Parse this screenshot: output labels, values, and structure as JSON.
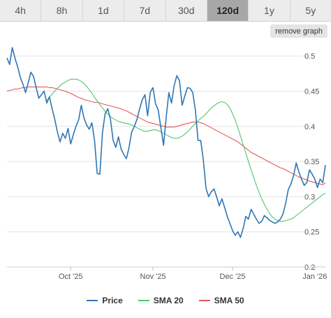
{
  "tabs": [
    {
      "label": "4h",
      "active": false
    },
    {
      "label": "8h",
      "active": false
    },
    {
      "label": "1d",
      "active": false
    },
    {
      "label": "7d",
      "active": false
    },
    {
      "label": "30d",
      "active": false
    },
    {
      "label": "120d",
      "active": true
    },
    {
      "label": "1y",
      "active": false
    },
    {
      "label": "5y",
      "active": false
    }
  ],
  "remove_graph_label": "remove graph",
  "chart_data": {
    "type": "line",
    "title": "",
    "xlabel": "",
    "ylabel": "",
    "ylim": [
      0.2,
      0.52
    ],
    "y_ticks": [
      0.2,
      0.25,
      0.3,
      0.35,
      0.4,
      0.45,
      0.5
    ],
    "y_tick_labels": [
      "0.2",
      "0.25",
      "0.3",
      "0.35",
      "0.4",
      "0.45",
      "0.5"
    ],
    "x_ticks": [
      {
        "label": "Oct '25",
        "index": 24
      },
      {
        "label": "Nov '25",
        "index": 55
      },
      {
        "label": "Dec '25",
        "index": 85
      },
      {
        "label": "Jan '26",
        "index": 116
      }
    ],
    "x_range": [
      0,
      120
    ],
    "grid": true,
    "legend_placement": "bottom",
    "series": [
      {
        "name": "Price",
        "color": "#2f76b5",
        "values": [
          0.497,
          0.488,
          0.512,
          0.497,
          0.485,
          0.47,
          0.46,
          0.448,
          0.462,
          0.477,
          0.471,
          0.455,
          0.44,
          0.445,
          0.45,
          0.433,
          0.442,
          0.425,
          0.41,
          0.392,
          0.378,
          0.39,
          0.383,
          0.397,
          0.375,
          0.388,
          0.4,
          0.409,
          0.43,
          0.412,
          0.402,
          0.396,
          0.405,
          0.38,
          0.333,
          0.332,
          0.392,
          0.418,
          0.425,
          0.41,
          0.38,
          0.37,
          0.385,
          0.368,
          0.36,
          0.354,
          0.37,
          0.392,
          0.4,
          0.41,
          0.425,
          0.438,
          0.445,
          0.415,
          0.448,
          0.455,
          0.432,
          0.423,
          0.398,
          0.373,
          0.413,
          0.448,
          0.433,
          0.458,
          0.472,
          0.465,
          0.43,
          0.443,
          0.455,
          0.454,
          0.448,
          0.423,
          0.38,
          0.38,
          0.352,
          0.312,
          0.3,
          0.307,
          0.311,
          0.3,
          0.287,
          0.297,
          0.285,
          0.272,
          0.262,
          0.252,
          0.245,
          0.25,
          0.242,
          0.255,
          0.272,
          0.268,
          0.282,
          0.275,
          0.268,
          0.262,
          0.265,
          0.273,
          0.27,
          0.266,
          0.264,
          0.262,
          0.264,
          0.268,
          0.275,
          0.29,
          0.31,
          0.318,
          0.33,
          0.348,
          0.335,
          0.325,
          0.316,
          0.32,
          0.338,
          0.332,
          0.325,
          0.313,
          0.325,
          0.32,
          0.345
        ]
      },
      {
        "name": "SMA 20",
        "color": "#52c46c",
        "values": [
          0.437,
          0.441,
          0.446,
          0.45,
          0.454,
          0.458,
          0.461,
          0.463,
          0.465,
          0.467,
          0.467,
          0.467,
          0.466,
          0.464,
          0.461,
          0.457,
          0.452,
          0.447,
          0.441,
          0.436,
          0.431,
          0.426,
          0.421,
          0.417,
          0.414,
          0.411,
          0.409,
          0.407,
          0.406,
          0.405,
          0.404,
          0.403,
          0.402,
          0.4,
          0.398,
          0.396,
          0.394,
          0.393,
          0.393,
          0.394,
          0.395,
          0.395,
          0.394,
          0.392,
          0.39,
          0.388,
          0.386,
          0.384,
          0.383,
          0.383,
          0.384,
          0.386,
          0.389,
          0.392,
          0.396,
          0.4,
          0.404,
          0.408,
          0.411,
          0.414,
          0.418,
          0.422,
          0.426,
          0.429,
          0.432,
          0.434,
          0.435,
          0.434,
          0.431,
          0.426,
          0.418,
          0.409,
          0.398,
          0.386,
          0.374,
          0.362,
          0.35,
          0.338,
          0.327,
          0.316,
          0.306,
          0.297,
          0.289,
          0.282,
          0.276,
          0.271,
          0.268,
          0.266,
          0.265,
          0.265,
          0.266,
          0.267,
          0.268,
          0.27,
          0.273,
          0.276,
          0.279,
          0.282,
          0.285,
          0.288,
          0.291,
          0.294,
          0.297,
          0.3,
          0.303,
          0.305
        ]
      },
      {
        "name": "SMA 50",
        "color": "#e05a55",
        "values": [
          0.45,
          0.451,
          0.452,
          0.453,
          0.453,
          0.454,
          0.455,
          0.455,
          0.456,
          0.456,
          0.456,
          0.456,
          0.456,
          0.456,
          0.456,
          0.456,
          0.455,
          0.455,
          0.454,
          0.453,
          0.452,
          0.451,
          0.45,
          0.448,
          0.447,
          0.445,
          0.443,
          0.441,
          0.44,
          0.438,
          0.437,
          0.436,
          0.435,
          0.434,
          0.434,
          0.433,
          0.432,
          0.431,
          0.43,
          0.429,
          0.428,
          0.427,
          0.426,
          0.425,
          0.423,
          0.422,
          0.42,
          0.418,
          0.416,
          0.414,
          0.412,
          0.41,
          0.408,
          0.406,
          0.405,
          0.404,
          0.403,
          0.402,
          0.401,
          0.4,
          0.399,
          0.399,
          0.399,
          0.399,
          0.4,
          0.401,
          0.402,
          0.403,
          0.404,
          0.405,
          0.406,
          0.406,
          0.406,
          0.405,
          0.404,
          0.402,
          0.4,
          0.398,
          0.396,
          0.394,
          0.392,
          0.39,
          0.388,
          0.386,
          0.384,
          0.382,
          0.38,
          0.378,
          0.375,
          0.372,
          0.369,
          0.366,
          0.363,
          0.361,
          0.359,
          0.357,
          0.355,
          0.353,
          0.351,
          0.349,
          0.347,
          0.345,
          0.343,
          0.341,
          0.34,
          0.338,
          0.336,
          0.334,
          0.332,
          0.33,
          0.328,
          0.327,
          0.325,
          0.324,
          0.322,
          0.321,
          0.32,
          0.319,
          0.318,
          0.317,
          0.32
        ]
      }
    ]
  }
}
